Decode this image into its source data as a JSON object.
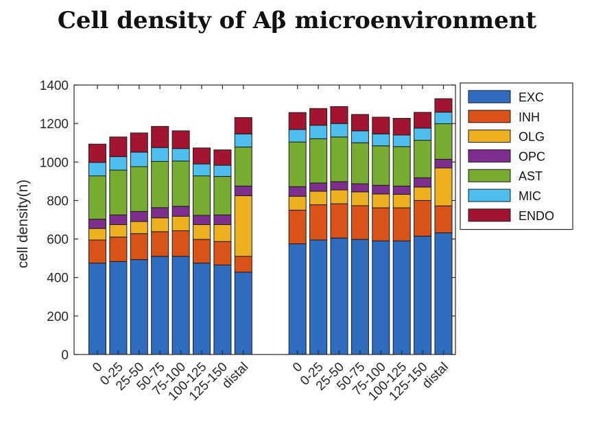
{
  "title": "Cell density of Aβ microenvironment",
  "chart_data": {
    "type": "bar",
    "stacked": true,
    "categories": [
      "0",
      "0-25",
      "25-50",
      "50-75",
      "75-100",
      "100-125",
      "125-150",
      "distal",
      "0",
      "0-25",
      "25-50",
      "50-75",
      "75-100",
      "100-125",
      "125-150",
      "distal"
    ],
    "groups": [
      8,
      8
    ],
    "ylabel": "cell density(n)",
    "xlabel": "",
    "ylim": [
      0,
      1400
    ],
    "yticks": [
      0,
      200,
      400,
      600,
      800,
      1000,
      1200,
      1400
    ],
    "grid": false,
    "legend_position": "right",
    "series": [
      {
        "name": "EXC",
        "color": "#2F6BBF",
        "values": [
          475,
          483,
          493,
          510,
          510,
          475,
          465,
          428,
          575,
          595,
          605,
          598,
          590,
          590,
          615,
          632
        ]
      },
      {
        "name": "INH",
        "color": "#D95319",
        "values": [
          120,
          127,
          135,
          128,
          133,
          123,
          122,
          82,
          175,
          183,
          178,
          175,
          172,
          172,
          185,
          140
        ]
      },
      {
        "name": "OLG",
        "color": "#EDB120",
        "values": [
          60,
          65,
          63,
          72,
          75,
          77,
          88,
          315,
          72,
          70,
          72,
          72,
          72,
          70,
          70,
          197
        ]
      },
      {
        "name": "OPC",
        "color": "#7E2F8E",
        "values": [
          48,
          50,
          52,
          53,
          52,
          48,
          50,
          50,
          50,
          43,
          43,
          42,
          45,
          43,
          48,
          45
        ]
      },
      {
        "name": "AST",
        "color": "#77AC30",
        "values": [
          225,
          233,
          233,
          240,
          235,
          205,
          200,
          203,
          232,
          230,
          232,
          213,
          205,
          205,
          195,
          185
        ]
      },
      {
        "name": "MIC",
        "color": "#4DBEEE",
        "values": [
          70,
          70,
          75,
          72,
          65,
          62,
          58,
          68,
          65,
          70,
          70,
          62,
          62,
          60,
          63,
          60
        ]
      },
      {
        "name": "ENDO",
        "color": "#A2142F",
        "values": [
          95,
          102,
          100,
          110,
          92,
          83,
          80,
          85,
          88,
          87,
          88,
          85,
          87,
          87,
          82,
          70
        ]
      }
    ]
  }
}
